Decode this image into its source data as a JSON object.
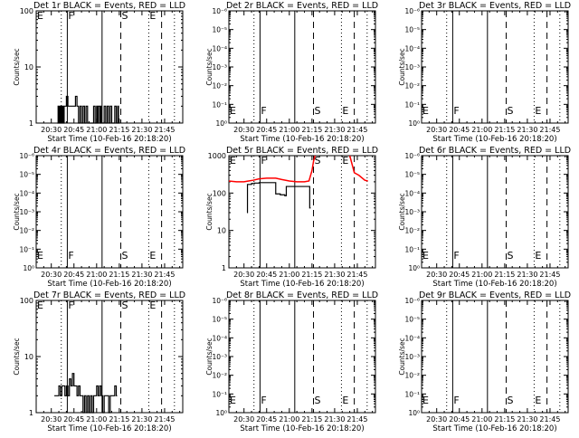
{
  "chart_data": {
    "type": "line",
    "layout": "3x3 grid",
    "time_axis": {
      "range_minutes_after_20h": [
        20,
        117
      ],
      "tick_labels": [
        "20:30",
        "20:45",
        "21:00",
        "21:15",
        "21:30",
        "21:45"
      ],
      "tick_minutes": [
        30,
        45,
        60,
        75,
        90,
        105
      ],
      "xlabel": "Start Time (10-Feb-16 20:18:20)"
    },
    "ylabel": "Counts/sec",
    "markers": [
      {
        "style": "dotted",
        "t": 36.6,
        "letter": "E"
      },
      {
        "style": "solid",
        "t": 40.6,
        "letter": "F"
      },
      {
        "style": "solid",
        "t": 63.6,
        "letter": ""
      },
      {
        "style": "dashed",
        "t": 76,
        "letter": "S"
      },
      {
        "style": "dotted",
        "t": 94.5,
        "letter": "E"
      },
      {
        "style": "dashed",
        "t": 103,
        "letter": ""
      },
      {
        "style": "dotted",
        "t": 111.5,
        "letter": ""
      }
    ],
    "colors": {
      "events": "#000000",
      "lld": "#ff0000"
    },
    "empty_yticks": [
      "10⁻⁶",
      "10⁻⁵",
      "10⁻⁴",
      "10⁻³",
      "10⁻²",
      "10⁻¹",
      "10⁰"
    ],
    "panels": [
      {
        "title": "Det 1r BLACK = Events, RED = LLD",
        "ylim": [
          1,
          100
        ],
        "yticks": [
          "100",
          "10",
          "1"
        ],
        "letters_pos": "top",
        "events": [
          [
            34,
            1
          ],
          [
            34.5,
            2
          ],
          [
            35,
            1
          ],
          [
            35.5,
            2
          ],
          [
            36,
            1
          ],
          [
            36.5,
            2
          ],
          [
            37,
            1
          ],
          [
            37.5,
            2
          ],
          [
            38,
            1
          ],
          [
            38.5,
            2
          ],
          [
            39,
            2
          ],
          [
            40,
            3
          ],
          [
            41,
            2
          ],
          [
            42,
            2
          ],
          [
            44,
            2
          ],
          [
            46,
            3
          ],
          [
            47,
            2
          ],
          [
            48,
            1
          ],
          [
            49,
            2
          ],
          [
            50,
            1
          ],
          [
            51,
            2
          ],
          [
            52,
            1
          ],
          [
            53,
            2
          ],
          [
            54,
            1
          ],
          [
            56,
            1
          ],
          [
            58,
            2
          ],
          [
            59,
            1
          ],
          [
            60,
            2
          ],
          [
            60.5,
            1
          ],
          [
            61,
            2
          ],
          [
            62,
            1
          ],
          [
            62.5,
            2
          ],
          [
            63,
            1
          ],
          [
            65,
            2
          ],
          [
            66,
            1
          ],
          [
            67,
            2
          ],
          [
            68,
            1
          ],
          [
            69,
            2
          ],
          [
            70,
            1
          ],
          [
            71,
            1
          ],
          [
            72,
            2
          ],
          [
            73,
            1
          ],
          [
            74,
            2
          ],
          [
            74.5,
            1
          ]
        ],
        "lld": []
      },
      {
        "title": "Det 2r BLACK = Events, RED = LLD",
        "ylim": null,
        "letters_pos": "bottom",
        "events": [],
        "lld": []
      },
      {
        "title": "Det 3r BLACK = Events, RED = LLD",
        "ylim": null,
        "letters_pos": "bottom",
        "events": [],
        "lld": []
      },
      {
        "title": "Det 4r BLACK = Events, RED = LLD",
        "ylim": null,
        "letters_pos": "bottom",
        "events": [],
        "lld": []
      },
      {
        "title": "Det 5r BLACK = Events, RED = LLD",
        "ylim": [
          1,
          1000
        ],
        "yticks": [
          "1000",
          "100",
          "10",
          "1"
        ],
        "letters_pos": "top",
        "events": [
          [
            32,
            30
          ],
          [
            32.3,
            170
          ],
          [
            35,
            180
          ],
          [
            37,
            185
          ],
          [
            40,
            190
          ],
          [
            50,
            190
          ],
          [
            51,
            95
          ],
          [
            54,
            90
          ],
          [
            57,
            85
          ],
          [
            58,
            150
          ],
          [
            65,
            150
          ],
          [
            70,
            150
          ],
          [
            73,
            150
          ],
          [
            73.5,
            40
          ]
        ],
        "lld": [
          [
            20,
            210
          ],
          [
            25,
            200
          ],
          [
            30,
            200
          ],
          [
            33,
            210
          ],
          [
            36,
            220
          ],
          [
            40,
            240
          ],
          [
            45,
            250
          ],
          [
            51,
            250
          ],
          [
            55,
            230
          ],
          [
            60,
            210
          ],
          [
            65,
            200
          ],
          [
            70,
            200
          ],
          [
            73,
            210
          ],
          [
            75,
            400
          ],
          [
            76,
            700
          ],
          [
            77,
            1000
          ]
        ],
        "lld2": [
          [
            100,
            1000
          ],
          [
            102,
            500
          ],
          [
            103,
            350
          ],
          [
            106,
            300
          ],
          [
            110,
            220
          ],
          [
            112,
            210
          ]
        ]
      },
      {
        "title": "Det 6r BLACK = Events, RED = LLD",
        "ylim": null,
        "letters_pos": "bottom",
        "events": [],
        "lld": []
      },
      {
        "title": "Det 7r BLACK = Events, RED = LLD",
        "ylim": [
          1,
          100
        ],
        "yticks": [
          "100",
          "10",
          "1"
        ],
        "letters_pos": "top",
        "events": [
          [
            32,
            2
          ],
          [
            34,
            2
          ],
          [
            35,
            3
          ],
          [
            36,
            2
          ],
          [
            37,
            3
          ],
          [
            38,
            3
          ],
          [
            39,
            2
          ],
          [
            40,
            3
          ],
          [
            41,
            2
          ],
          [
            42,
            4
          ],
          [
            43,
            3
          ],
          [
            44,
            5
          ],
          [
            45,
            3
          ],
          [
            46,
            3
          ],
          [
            47,
            2
          ],
          [
            48,
            3
          ],
          [
            49,
            2
          ],
          [
            50,
            2
          ],
          [
            51,
            1
          ],
          [
            52,
            2
          ],
          [
            53,
            1
          ],
          [
            54,
            2
          ],
          [
            55,
            1
          ],
          [
            56,
            2
          ],
          [
            57,
            1
          ],
          [
            58,
            2
          ],
          [
            59,
            2
          ],
          [
            60,
            3
          ],
          [
            61,
            2
          ],
          [
            62,
            3
          ],
          [
            63,
            2
          ],
          [
            64,
            1
          ],
          [
            65,
            2
          ],
          [
            67,
            2
          ],
          [
            68,
            1
          ],
          [
            69,
            2
          ],
          [
            71,
            2
          ],
          [
            72,
            3
          ],
          [
            73,
            2
          ]
        ],
        "lld": []
      },
      {
        "title": "Det 8r BLACK = Events, RED = LLD",
        "ylim": null,
        "letters_pos": "bottom",
        "events": [],
        "lld": []
      },
      {
        "title": "Det 9r BLACK = Events, RED = LLD",
        "ylim": null,
        "letters_pos": "bottom",
        "events": [],
        "lld": []
      }
    ]
  }
}
